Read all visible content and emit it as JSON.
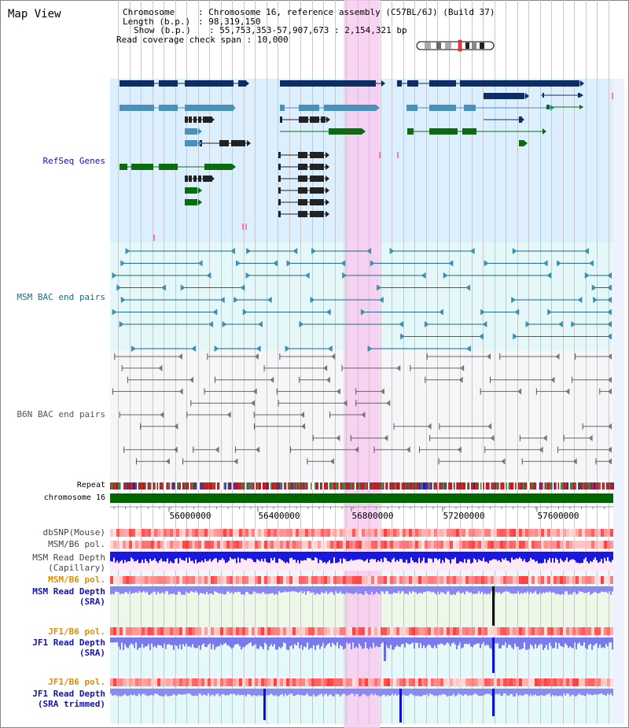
{
  "window_title": "Map View",
  "info": {
    "chromosome_key": "Chromosome",
    "chromosome_val": "Chromosome 16, reference assembly (C57BL/6J) (Build 37)",
    "length_key": "Length (b.p.)",
    "length_val": "98,319,150",
    "show_key": "Show (b.p.)",
    "show_val": "55,753,353-57,907,673 : 2,154,321 bp",
    "span_key": "Read coverage check span",
    "span_val": "10,000"
  },
  "tracks": {
    "refseq": "RefSeq Genes",
    "msm_bac": "MSM BAC end pairs",
    "b6n_bac": "B6N BAC end pairs",
    "repeat": "Repeat",
    "chromosome": "chromosome 16",
    "dbsnp": "dbSNP(Mouse)",
    "msm_b6_pol": "MSM/B6 pol.",
    "msm_depth_cap_1": "MSM Read Depth",
    "msm_depth_cap_2": "(Capillary)",
    "msm_b6_pol_2": "MSM/B6 pol.",
    "msm_depth_sra_1": "MSM Read Depth",
    "msm_depth_sra_2": "(SRA)",
    "jf1_b6_pol": "JF1/B6 pol.",
    "jf1_depth_sra_1": "JF1 Read Depth",
    "jf1_depth_sra_2": "(SRA)",
    "jf1_b6_pol_2": "JF1/B6 pol.",
    "jf1_depth_trim_1": "JF1 Read Depth",
    "jf1_depth_trim_2": "(SRA trimmed)"
  },
  "axis": {
    "ticks": [
      "56000000",
      "56400000",
      "56800000",
      "57200000",
      "57600000"
    ]
  },
  "colors": {
    "refseq_bg": "#dff0fa",
    "msm_bg": "#e6f8fa",
    "b6n_bg": "#f5f5f8",
    "highlight": "#f5c8ee",
    "gene_dark": "#0c2d66",
    "gene_mid": "#4b90b8",
    "gene_green": "#0b6b10",
    "msm_line": "#1a6a8a",
    "b6n_line": "#666666",
    "chrom_bar": "#006600",
    "depth_blue": "#1010e0",
    "depth_light": "#8080f0",
    "label_blue": "#1414b4",
    "label_orange": "#e08c00"
  }
}
